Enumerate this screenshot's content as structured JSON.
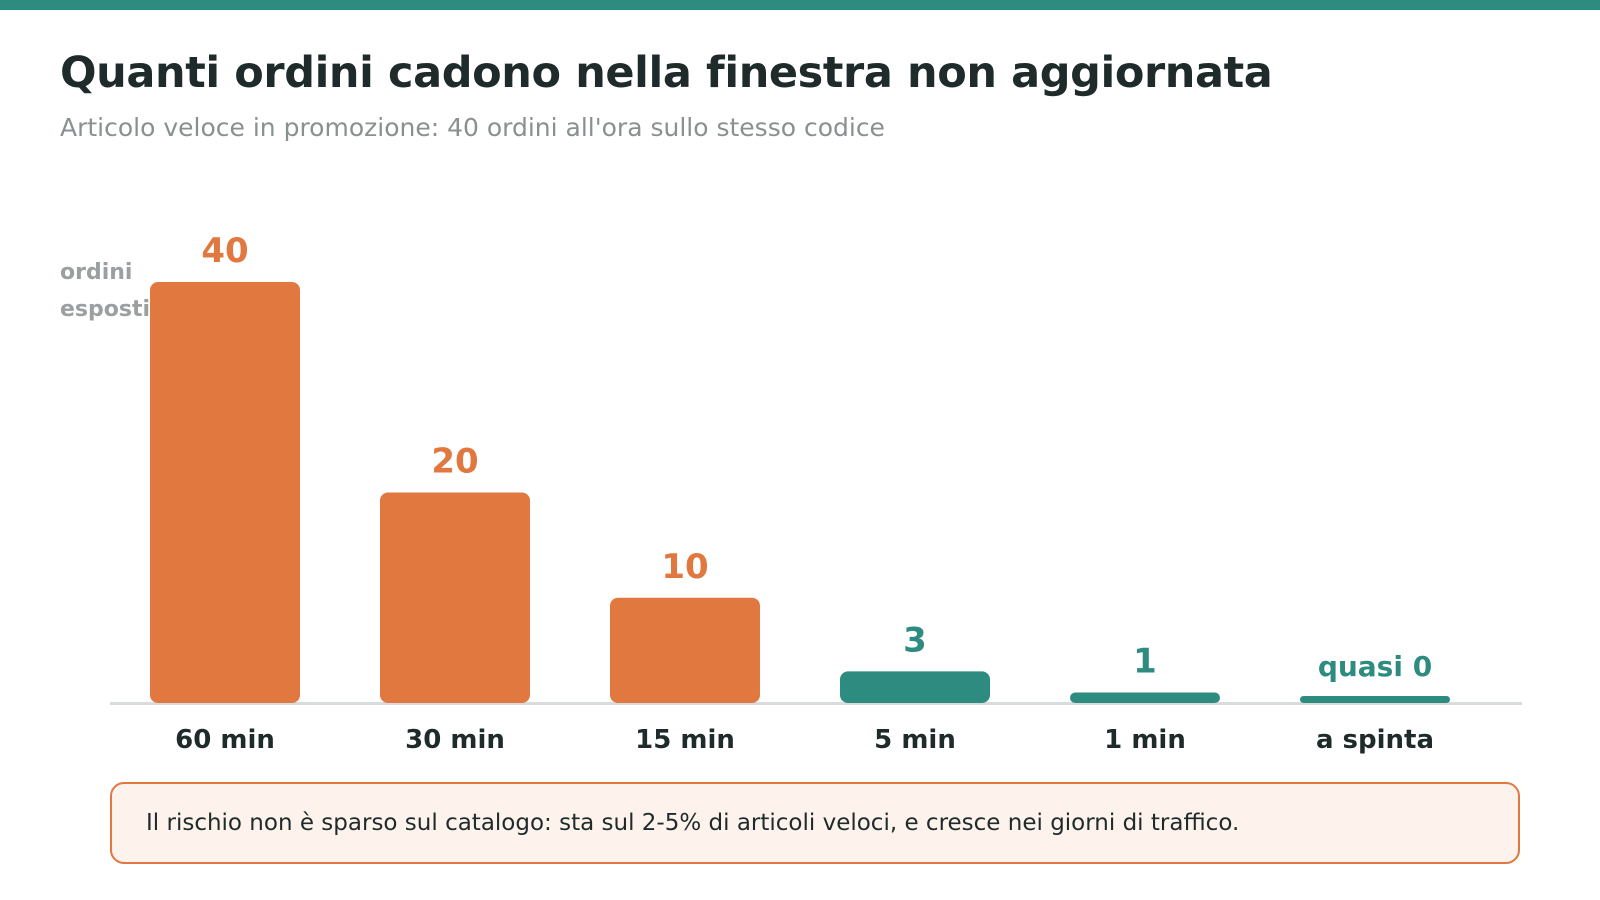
{
  "title": "Quanti ordini cadono nella finestra non aggiornata",
  "subtitle": "Articolo veloce in promozione: 40 ordini all'ora sullo stesso codice",
  "callout": "Il rischio non è sparso sul catalogo: sta sul 2-5% di articoli veloci, e cresce nei giorni di traffico.",
  "colors": {
    "accent": "#2e8b80",
    "risk": "#e07840",
    "callout_bg": "#fdf2ec",
    "axis_label": "#9aa0a0",
    "baseline": "#d8dcdc"
  },
  "chart_data": {
    "type": "bar",
    "ylabel": [
      "ordini",
      "esposti"
    ],
    "xlabel": "",
    "ylim": [
      0,
      40
    ],
    "categories": [
      "60 min",
      "30 min",
      "15 min",
      "5 min",
      "1 min",
      "a spinta"
    ],
    "values": [
      40,
      20,
      10,
      3,
      1,
      0.3
    ],
    "value_labels": [
      "40",
      "20",
      "10",
      "3",
      "1",
      "quasi 0"
    ],
    "bar_colors": [
      "#e07840",
      "#e07840",
      "#e07840",
      "#2e8b80",
      "#2e8b80",
      "#2e8b80"
    ]
  }
}
